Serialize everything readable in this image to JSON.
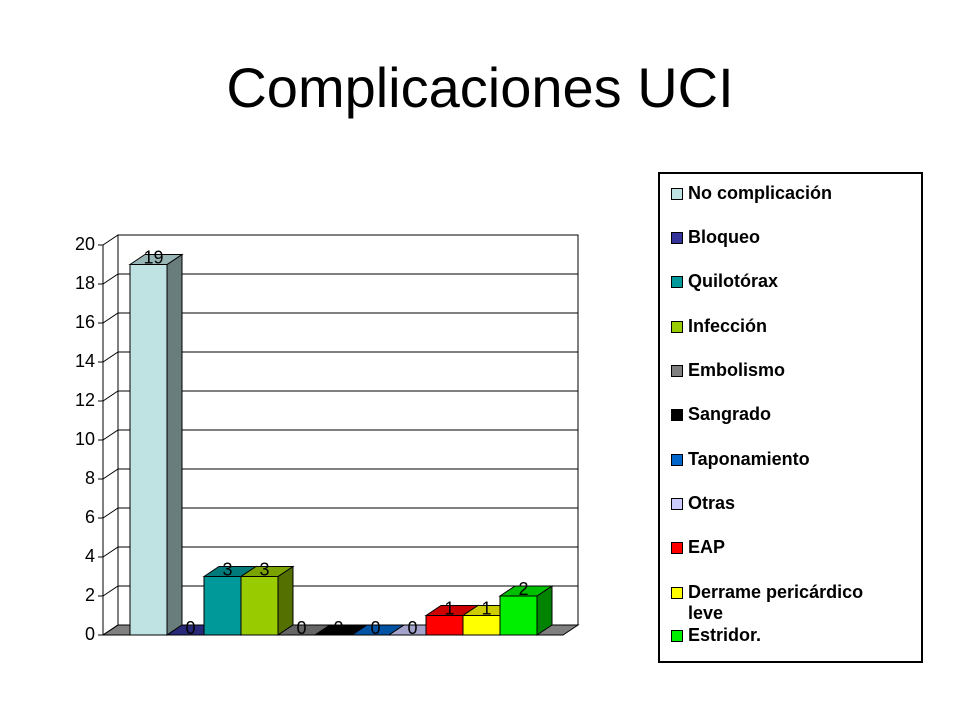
{
  "chart_data": {
    "type": "bar3d",
    "title": "Complicaciones UCI",
    "ylim": [
      0,
      20
    ],
    "yticks": [
      0,
      2,
      4,
      6,
      8,
      10,
      12,
      14,
      16,
      18,
      20
    ],
    "grid": true,
    "series": [
      {
        "name": "No complicación",
        "color": "#bfe3e3",
        "values": [
          19
        ]
      },
      {
        "name": "Bloqueo",
        "color": "#333399",
        "values": [
          0
        ]
      },
      {
        "name": "Quilotórax",
        "color": "#009999",
        "values": [
          3
        ]
      },
      {
        "name": "Infección",
        "color": "#99cc00",
        "values": [
          3
        ]
      },
      {
        "name": "Embolismo",
        "color": "#808080",
        "values": [
          0
        ]
      },
      {
        "name": "Sangrado",
        "color": "#000000",
        "values": [
          0
        ]
      },
      {
        "name": "Taponamiento",
        "color": "#0066cc",
        "values": [
          0
        ]
      },
      {
        "name": "Otras",
        "color": "#ccccff",
        "values": [
          0
        ]
      },
      {
        "name": "EAP",
        "color": "#ff0000",
        "values": [
          1
        ]
      },
      {
        "name": "Derrame pericárdico leve",
        "color": "#ffff00",
        "values": [
          1
        ]
      },
      {
        "name": "Estridor.",
        "color": "#00ee00",
        "values": [
          2
        ]
      }
    ]
  }
}
